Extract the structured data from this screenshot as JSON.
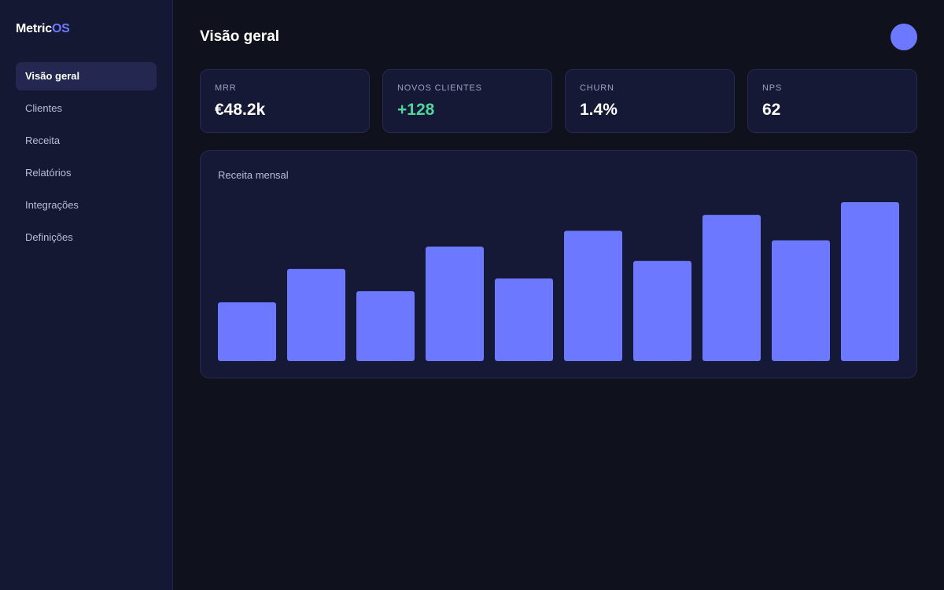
{
  "brand": {
    "name_main": "Metric",
    "name_accent": "OS"
  },
  "sidebar": {
    "items": [
      {
        "label": "Visão geral",
        "active": true
      },
      {
        "label": "Clientes",
        "active": false
      },
      {
        "label": "Receita",
        "active": false
      },
      {
        "label": "Relatórios",
        "active": false
      },
      {
        "label": "Integrações",
        "active": false
      },
      {
        "label": "Definições",
        "active": false
      }
    ]
  },
  "header": {
    "title": "Visão geral"
  },
  "kpis": [
    {
      "label": "MRR",
      "value": "€48.2k",
      "color": "#ffffff"
    },
    {
      "label": "NOVOS CLIENTES",
      "value": "+128",
      "color": "#4fd69c"
    },
    {
      "label": "CHURN",
      "value": "1.4%",
      "color": "#ffffff"
    },
    {
      "label": "NPS",
      "value": "62",
      "color": "#ffffff"
    }
  ],
  "colors": {
    "accent": "#6c78ff",
    "positive": "#4fd69c",
    "background": "#0f111c",
    "sidebar": "#141833",
    "card": "#151936"
  },
  "chart_data": {
    "type": "bar",
    "title": "Receita mensal",
    "values": [
      37,
      58,
      44,
      72,
      52,
      82,
      63,
      92,
      76,
      100
    ],
    "ylim": [
      0,
      100
    ],
    "grid": false,
    "color": "#6c78ff"
  }
}
